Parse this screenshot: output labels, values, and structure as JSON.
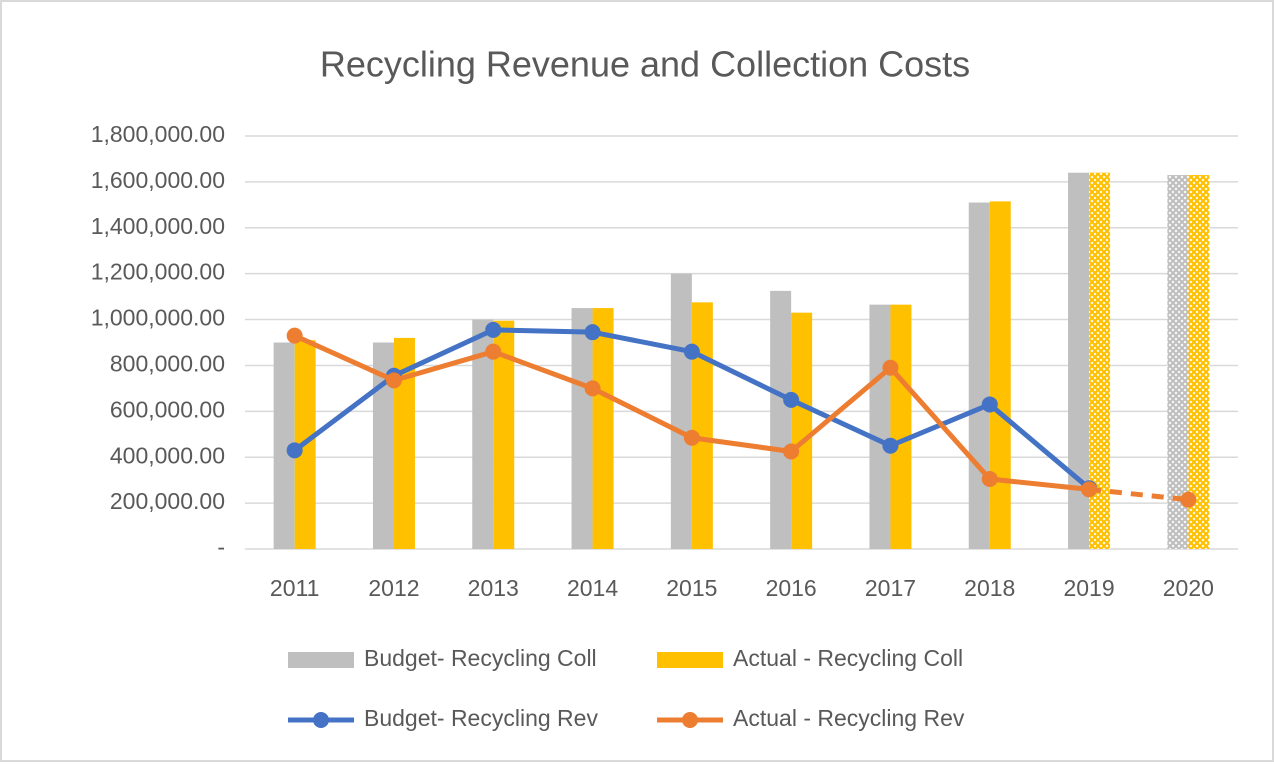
{
  "chart_data": {
    "type": "bar_line",
    "title": "Recycling Revenue and Collection Costs",
    "categories": [
      "2011",
      "2012",
      "2013",
      "2014",
      "2015",
      "2016",
      "2017",
      "2018",
      "2019",
      "2020"
    ],
    "ylim": [
      0,
      1800000
    ],
    "yticks": [
      {
        "value": 0,
        "label": "-"
      },
      {
        "value": 200000,
        "label": "200,000.00"
      },
      {
        "value": 400000,
        "label": "400,000.00"
      },
      {
        "value": 600000,
        "label": "600,000.00"
      },
      {
        "value": 800000,
        "label": "800,000.00"
      },
      {
        "value": 1000000,
        "label": "1,000,000.00"
      },
      {
        "value": 1200000,
        "label": "1,200,000.00"
      },
      {
        "value": 1400000,
        "label": "1,400,000.00"
      },
      {
        "value": 1600000,
        "label": "1,600,000.00"
      },
      {
        "value": 1800000,
        "label": "1,800,000.00"
      }
    ],
    "grid": true,
    "legend": "bottom",
    "series": [
      {
        "name": "Budget- Recycling Coll",
        "kind": "bar",
        "color": "#bfbfbf",
        "values": [
          900000,
          900000,
          1000000,
          1050000,
          1200000,
          1125000,
          1065000,
          1510000,
          1640000,
          1630000
        ],
        "hatched": [
          false,
          false,
          false,
          false,
          false,
          false,
          false,
          false,
          false,
          true
        ]
      },
      {
        "name": "Actual - Recycling Coll",
        "kind": "bar",
        "color": "#ffc000",
        "values": [
          910000,
          920000,
          995000,
          1050000,
          1075000,
          1030000,
          1065000,
          1515000,
          1640000,
          1630000
        ],
        "hatched": [
          false,
          false,
          false,
          false,
          false,
          false,
          false,
          false,
          true,
          true
        ]
      },
      {
        "name": "Budget- Recycling Rev",
        "kind": "line",
        "color": "#4472c4",
        "values": [
          430000,
          755000,
          955000,
          945000,
          860000,
          650000,
          450000,
          630000,
          265000,
          null
        ],
        "dashed": [
          false,
          false,
          false,
          false,
          false,
          false,
          false,
          false,
          false,
          false
        ]
      },
      {
        "name": "Actual - Recycling Rev",
        "kind": "line",
        "color": "#ed7d31",
        "values": [
          930000,
          735000,
          860000,
          700000,
          485000,
          425000,
          790000,
          305000,
          260000,
          215000
        ],
        "dashed": [
          false,
          false,
          false,
          false,
          false,
          false,
          false,
          false,
          false,
          true
        ]
      }
    ]
  }
}
